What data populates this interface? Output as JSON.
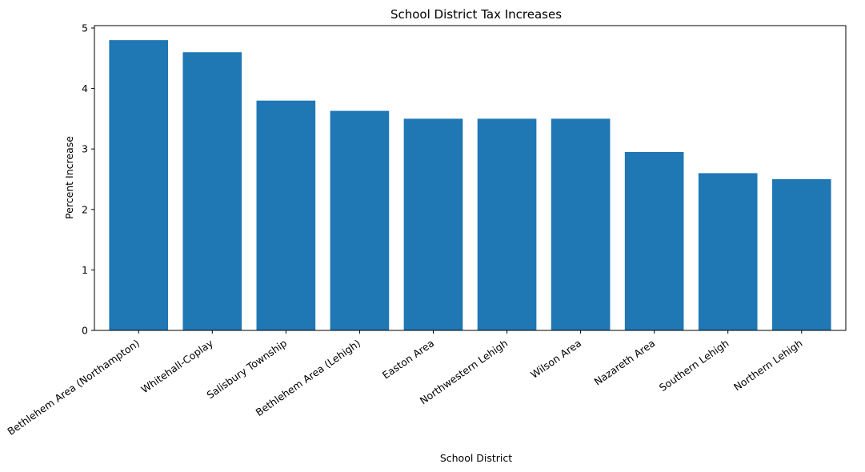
{
  "chart_data": {
    "type": "bar",
    "title": "School District Tax Increases",
    "xlabel": "School District",
    "ylabel": "Percent Increase",
    "categories": [
      "Bethlehem Area (Northampton)",
      "Whitehall-Coplay",
      "Salisbury Township",
      "Bethlehem Area (Lehigh)",
      "Easton Area",
      "Northwestern Lehigh",
      "Wilson Area",
      "Nazareth Area",
      "Southern Lehigh",
      "Northern Lehigh"
    ],
    "values": [
      4.8,
      4.6,
      3.8,
      3.63,
      3.5,
      3.5,
      3.5,
      2.95,
      2.6,
      2.5
    ],
    "yticks": [
      0,
      1,
      2,
      3,
      4,
      5
    ],
    "ylim": [
      0,
      5.04
    ],
    "bar_color": "#1f77b4",
    "grid": false
  }
}
